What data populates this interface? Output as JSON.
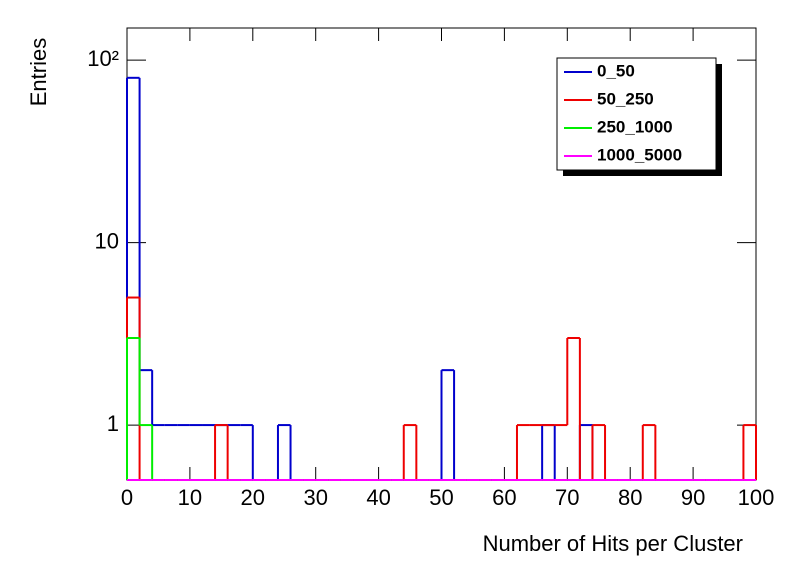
{
  "chart_data": {
    "type": "histogram",
    "x_label": "Number of Hits per Cluster",
    "y_label": "Entries",
    "log_y": true,
    "legend": "upper right",
    "bins": [
      0,
      2,
      4,
      6,
      8,
      10,
      12,
      14,
      16,
      18,
      20,
      22,
      24,
      26,
      28,
      30,
      32,
      34,
      36,
      38,
      40,
      42,
      44,
      46,
      48,
      50,
      52,
      54,
      56,
      58,
      60,
      62,
      64,
      66,
      68,
      70,
      72,
      74,
      76,
      78,
      80,
      82,
      84,
      86,
      88,
      90,
      92,
      94,
      96,
      98,
      100
    ],
    "xlim": [
      0,
      100
    ],
    "xticks": [
      0,
      10,
      20,
      30,
      40,
      50,
      60,
      70,
      80,
      90,
      100
    ],
    "ylim": [
      0.5,
      150
    ],
    "yticks": [
      1,
      10,
      {
        "value": 100,
        "label": "10²"
      }
    ],
    "series": [
      {
        "name": "0_50",
        "color": "#0000cc",
        "values": [
          80,
          2,
          1,
          1,
          1,
          1,
          1,
          1,
          1,
          1,
          0,
          0,
          1,
          0,
          0,
          0,
          0,
          0,
          0,
          0,
          0,
          0,
          0,
          0,
          0,
          2,
          0,
          0,
          0,
          0,
          0,
          0,
          0,
          1,
          0,
          0,
          1,
          0,
          0,
          0,
          0,
          0,
          0,
          0,
          0,
          0,
          0,
          0,
          0,
          0
        ]
      },
      {
        "name": "50_250",
        "color": "#ee0000",
        "values": [
          5,
          0,
          0,
          0,
          0,
          0,
          0,
          1,
          0,
          0,
          0,
          0,
          0,
          0,
          0,
          0,
          0,
          0,
          0,
          0,
          0,
          0,
          1,
          0,
          0,
          0,
          0,
          0,
          0,
          0,
          0,
          1,
          1,
          1,
          1,
          3,
          0,
          1,
          0,
          0,
          0,
          1,
          0,
          0,
          0,
          0,
          0,
          0,
          0,
          1
        ]
      },
      {
        "name": "250_1000",
        "color": "#00ee00",
        "values": [
          3,
          1,
          0,
          0,
          0,
          0,
          0,
          0,
          0,
          0,
          0,
          0,
          0,
          0,
          0,
          0,
          0,
          0,
          0,
          0,
          0,
          0,
          0,
          0,
          0,
          0,
          0,
          0,
          0,
          0,
          0,
          0,
          0,
          0,
          0,
          0,
          0,
          0,
          0,
          0,
          0,
          0,
          0,
          0,
          0,
          0,
          0,
          0,
          0,
          0
        ]
      },
      {
        "name": "1000_5000",
        "color": "#ff00ff",
        "values": [
          0,
          0,
          0,
          0,
          0,
          0,
          0,
          0,
          0,
          0,
          0,
          0,
          0,
          0,
          0,
          0,
          0,
          0,
          0,
          0,
          0,
          0,
          0,
          0,
          0,
          0,
          0,
          0,
          0,
          0,
          0,
          0,
          0,
          0,
          0,
          0,
          0,
          0,
          0,
          0,
          0,
          0,
          0,
          0,
          0,
          0,
          0,
          0,
          0,
          0
        ]
      }
    ]
  }
}
